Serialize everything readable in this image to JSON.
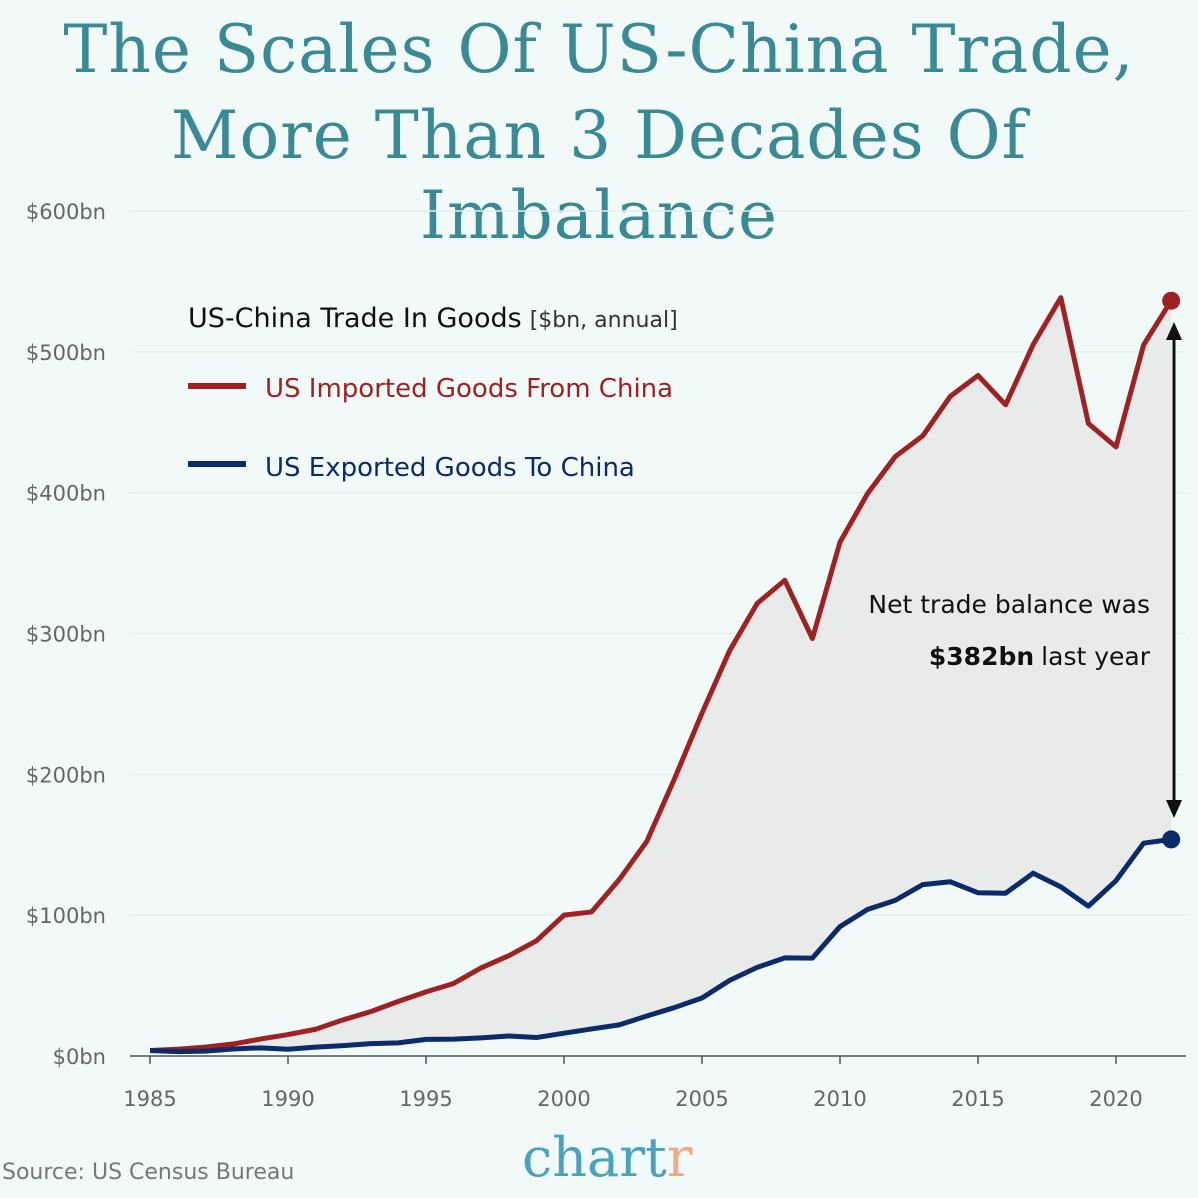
{
  "title_line1": "The Scales Of US-China Trade,",
  "title_line2": "More Than 3 Decades Of Imbalance",
  "source": "Source: US Census Bureau",
  "logo": {
    "main": "chart",
    "last": "r"
  },
  "chart_data": {
    "type": "line",
    "legend_title": "US-China Trade In Goods",
    "legend_subtitle": "[$bn, annual]",
    "legend_placement": "top-left",
    "grid": true,
    "ylim": [
      0,
      600
    ],
    "yticks": [
      "$0bn",
      "$100bn",
      "$200bn",
      "$300bn",
      "$400bn",
      "$500bn",
      "$600bn"
    ],
    "xticks": [
      "1985",
      "1990",
      "1995",
      "2000",
      "2005",
      "2010",
      "2015",
      "2020"
    ],
    "x": [
      1985,
      1986,
      1987,
      1988,
      1989,
      1990,
      1991,
      1992,
      1993,
      1994,
      1995,
      1996,
      1997,
      1998,
      1999,
      2000,
      2001,
      2002,
      2003,
      2004,
      2005,
      2006,
      2007,
      2008,
      2009,
      2010,
      2011,
      2012,
      2013,
      2014,
      2015,
      2016,
      2017,
      2018,
      2019,
      2020,
      2021,
      2022
    ],
    "series": [
      {
        "name": "US Imported Goods From China",
        "color": "#9e2222",
        "values": [
          3.9,
          4.8,
          6.3,
          8.5,
          12.0,
          15.2,
          19.0,
          25.7,
          31.5,
          38.8,
          45.5,
          51.5,
          62.6,
          71.2,
          81.8,
          100.0,
          102.3,
          125.2,
          152.4,
          196.7,
          243.5,
          287.8,
          321.4,
          337.8,
          296.4,
          364.9,
          399.4,
          425.6,
          440.4,
          468.5,
          483.2,
          462.4,
          505.2,
          538.5,
          449.1,
          432.5,
          504.9,
          536.3
        ]
      },
      {
        "name": "US Exported Goods To China",
        "color": "#0d2a6b",
        "values": [
          3.9,
          3.1,
          3.5,
          5.0,
          5.8,
          4.8,
          6.3,
          7.4,
          8.8,
          9.3,
          11.8,
          12.0,
          12.9,
          14.2,
          13.1,
          16.2,
          19.2,
          22.1,
          28.4,
          34.4,
          41.2,
          53.7,
          62.9,
          69.7,
          69.5,
          91.9,
          104.1,
          110.5,
          121.7,
          123.7,
          115.9,
          115.6,
          129.8,
          120.1,
          106.4,
          124.5,
          151.1,
          153.8
        ]
      }
    ],
    "annotation": {
      "line1": "Net trade balance was",
      "value": "$382bn",
      "rest": "last year"
    }
  }
}
